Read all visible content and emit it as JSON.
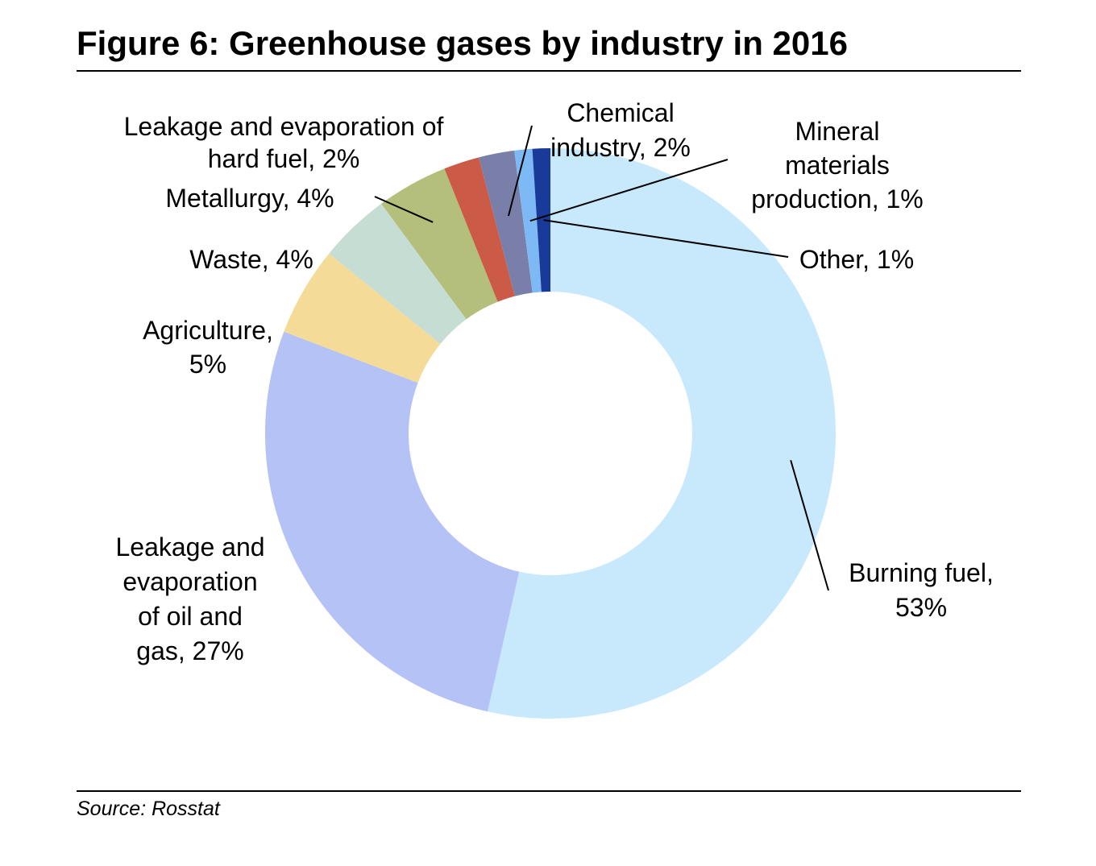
{
  "title": "Figure 6: Greenhouse gases by industry in 2016",
  "source": "Source: Rosstat",
  "chart_data": {
    "type": "pie",
    "variant": "donut",
    "categories": [
      "Burning fuel",
      "Leakage and evaporation of oil and gas",
      "Agriculture",
      "Waste",
      "Metallurgy",
      "Leakage and evaporation of hard fuel",
      "Chemical industry",
      "Mineral materials production",
      "Other"
    ],
    "values": [
      53,
      27,
      5,
      4,
      4,
      2,
      2,
      1,
      1
    ],
    "colors": [
      "#c8e9fc",
      "#b4c2f5",
      "#f4dc98",
      "#c5ddd3",
      "#b3bf7a",
      "#cb5a47",
      "#7a7faa",
      "#7db9f4",
      "#1a3a99"
    ],
    "labels": [
      [
        "Burning fuel,",
        "53%"
      ],
      [
        "Leakage and",
        "evaporation",
        "of oil and",
        "gas, 27%"
      ],
      [
        "Agriculture,",
        "5%"
      ],
      [
        "Waste, 4%"
      ],
      [
        "Metallurgy, 4%"
      ],
      [
        "Leakage and evaporation of",
        "hard fuel, 2%"
      ],
      [
        "Chemical",
        "industry, 2%"
      ],
      [
        "Mineral",
        "materials",
        "production, 1%"
      ],
      [
        "Other, 1%"
      ]
    ]
  }
}
